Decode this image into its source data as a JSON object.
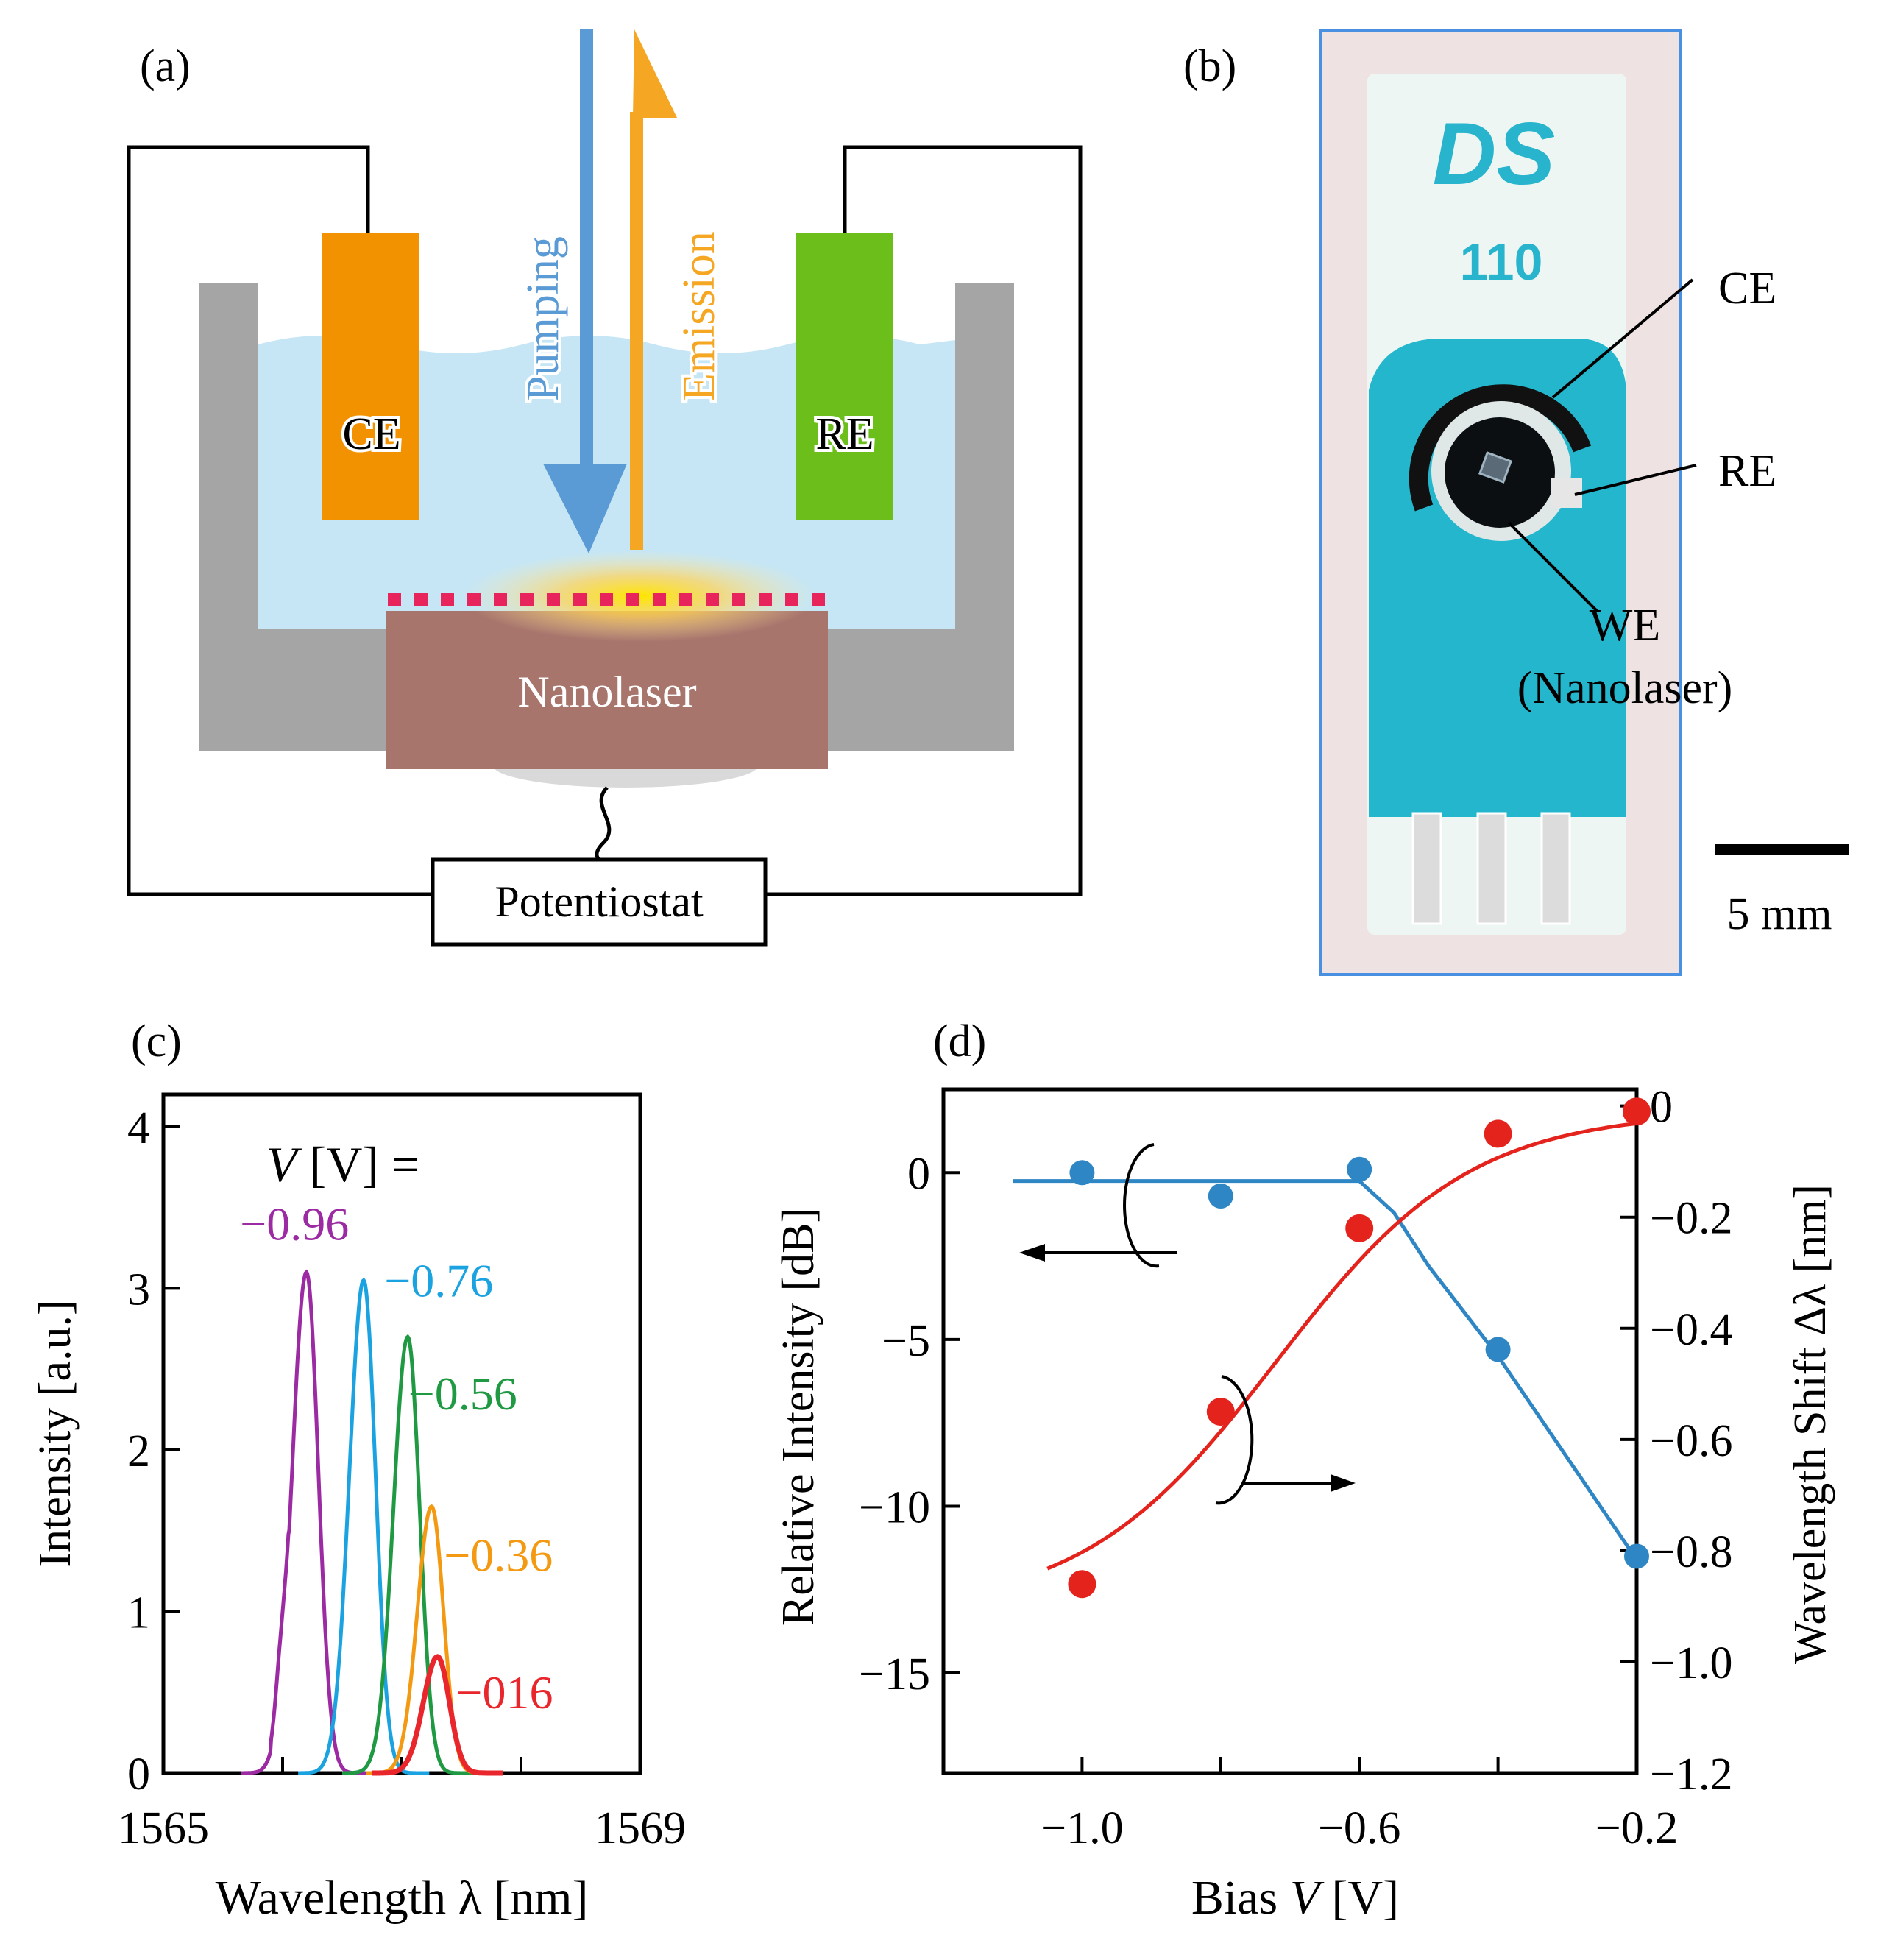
{
  "colors": {
    "pump": "#5b9bd5",
    "emission": "#f5a623",
    "ce": "#f39200",
    "re": "#6cbf1a",
    "liquid": "#c6e6f5",
    "vessel": "#a5a5a5",
    "nanolaser": "#a8756c",
    "grating": "#e8245c",
    "chip_board": "#23b6cc",
    "chip_bg": "#efe2e2",
    "violet": "#9b2aa3",
    "cyan": "#1aa3e0",
    "green": "#1f9a43",
    "orange": "#f39a12",
    "red": "#e8262c",
    "blue_curve": "#2f86c4",
    "red_curve": "#e4231d"
  },
  "panel_a": {
    "label": "(a)",
    "pumping": "Pumping",
    "emission": "Emission",
    "ce": "CE",
    "re": "RE",
    "nanolaser": "Nanolaser",
    "potentiostat": "Potentiostat"
  },
  "panel_b": {
    "label": "(b)",
    "brand": "DS",
    "model": "110",
    "ce": "CE",
    "re": "RE",
    "we": "WE",
    "we_sub": "(Nanolaser)",
    "scale": "5 mm"
  },
  "panel_c": {
    "label": "(c)",
    "legend_var": "V",
    "legend_rest": " [V] =",
    "ylabel": "Intensity [a.u.]",
    "xlabel": "Wavelength λ [nm]",
    "xticks": [
      "1565",
      "1569"
    ],
    "yticks": [
      "0",
      "1",
      "2",
      "3",
      "4"
    ]
  },
  "panel_d": {
    "label": "(d)",
    "ylabel_left": "Relative Intensity [dB]",
    "ylabel_right": "Wavelength Shift Δλ [nm]",
    "xlabel_pre": "Bias ",
    "xlabel_var": "V",
    "xlabel_post": " [V]",
    "xticks": [
      "−1.0",
      "−0.6",
      "−0.2"
    ],
    "yticks_left": [
      "0",
      "−5",
      "−10",
      "−15"
    ],
    "yticks_right": [
      "0",
      "−0.2",
      "−0.4",
      "−0.6",
      "−0.8",
      "−1.0",
      "−1.2"
    ]
  },
  "chart_data": [
    {
      "type": "line",
      "title": "(c)",
      "xlabel": "Wavelength λ [nm]",
      "ylabel": "Intensity [a.u.]",
      "xlim": [
        1565,
        1569
      ],
      "ylim": [
        0,
        4.2
      ],
      "series": [
        {
          "name": "−0.96",
          "color": "#9b2aa3",
          "peak_x": 1566.2,
          "peak_y": 3.1
        },
        {
          "name": "−0.76",
          "color": "#1aa3e0",
          "peak_x": 1566.68,
          "peak_y": 3.05
        },
        {
          "name": "−0.56",
          "color": "#1f9a43",
          "peak_x": 1567.05,
          "peak_y": 2.7
        },
        {
          "name": "−0.36",
          "color": "#f39a12",
          "peak_x": 1567.25,
          "peak_y": 1.65
        },
        {
          "name": "−016",
          "color": "#e8262c",
          "peak_x": 1567.3,
          "peak_y": 0.72
        }
      ]
    },
    {
      "type": "scatter",
      "title": "(d)",
      "xlabel": "Bias V [V]",
      "xlim": [
        -1.2,
        -0.2
      ],
      "series": [
        {
          "name": "Relative Intensity [dB]",
          "axis": "left",
          "ylim": [
            -18,
            2.5
          ],
          "x": [
            -1.0,
            -0.8,
            -0.6,
            -0.4,
            -0.2
          ],
          "y": [
            0.0,
            -0.7,
            0.1,
            -5.3,
            -11.5
          ]
        },
        {
          "name": "Wavelength Shift Δλ [nm]",
          "axis": "right",
          "ylim": [
            -1.2,
            0.03
          ],
          "x": [
            -1.0,
            -0.8,
            -0.6,
            -0.4,
            -0.2
          ],
          "y": [
            -0.86,
            -0.55,
            -0.22,
            -0.05,
            -0.01
          ]
        }
      ]
    }
  ]
}
